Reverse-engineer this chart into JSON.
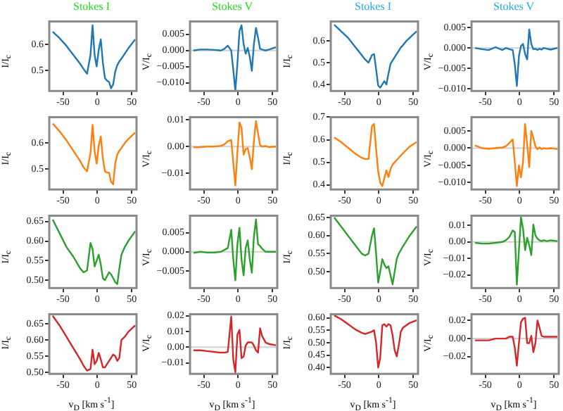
{
  "chart_data": [
    {
      "type": "line",
      "title": "Stokes I",
      "ylabel": "I/I$_{c}$",
      "x": [
        -65,
        -55,
        -45,
        -35,
        -25,
        -20,
        -15,
        -10,
        -7,
        -4,
        -1,
        2,
        5,
        8,
        11,
        14,
        17,
        20,
        23,
        26,
        29,
        32,
        35,
        40,
        45,
        55
      ],
      "xlim": [
        -70,
        57
      ],
      "xticks": [
        -50,
        0,
        50
      ],
      "ylim": [
        0.42,
        0.69
      ],
      "yticks": [
        0.5,
        0.6
      ],
      "series": [
        {
          "color": "#1f77b4",
          "values": [
            0.65,
            0.625,
            0.595,
            0.56,
            0.525,
            0.505,
            0.487,
            0.56,
            0.675,
            0.56,
            0.515,
            0.58,
            0.62,
            0.53,
            0.47,
            0.46,
            0.455,
            0.43,
            0.445,
            0.495,
            0.52,
            0.535,
            0.545,
            0.565,
            0.585,
            0.62
          ]
        }
      ]
    },
    {
      "type": "line",
      "title": "Stokes V",
      "ylabel": "V/I$_{c}$",
      "x": [
        -65,
        -55,
        -45,
        -35,
        -25,
        -20,
        -15,
        -10,
        -7,
        -4,
        -1,
        2,
        5,
        8,
        11,
        14,
        17,
        20,
        23,
        26,
        29,
        32,
        35,
        40,
        45,
        55
      ],
      "xlim": [
        -70,
        57
      ],
      "xticks": [
        -50,
        0,
        50
      ],
      "ylim": [
        -0.0125,
        0.009
      ],
      "yticks": [
        {
          "value": -0.01,
          "label": "−0.010"
        },
        {
          "value": -0.005,
          "label": "−0.005"
        },
        {
          "value": 0,
          "label": "0.000"
        },
        {
          "value": 0.005,
          "label": "0.005"
        }
      ],
      "ref_lines": [
        {
          "axis": "y",
          "value": 0,
          "color": "#d0d0d0"
        }
      ],
      "series": [
        {
          "color": "#1f77b4",
          "values": [
            0,
            0.0003,
            0.0003,
            0.0002,
            0,
            0.0005,
            0.0015,
            0,
            -0.006,
            -0.0125,
            -0.004,
            0.006,
            0.0078,
            0.002,
            -0.001,
            0.0008,
            -0.002,
            -0.0063,
            0.002,
            0.007,
            0.004,
            0.0005,
            0.0003,
            0,
            0.0003,
            0.001
          ]
        }
      ]
    },
    {
      "type": "line",
      "title": "Stokes I",
      "ylabel": "I/I$_{c}$",
      "x": [
        -65,
        -55,
        -45,
        -35,
        -25,
        -20,
        -15,
        -10,
        -7,
        -4,
        -1,
        2,
        5,
        8,
        11,
        14,
        17,
        20,
        23,
        26,
        29,
        32,
        35,
        40,
        45,
        55
      ],
      "xlim": [
        -70,
        57
      ],
      "xticks": [
        -50,
        0,
        50
      ],
      "ylim": [
        0.37,
        0.69
      ],
      "yticks": [
        0.4,
        0.5,
        0.6
      ],
      "series": [
        {
          "color": "#1f77b4",
          "values": [
            0.675,
            0.645,
            0.615,
            0.575,
            0.535,
            0.515,
            0.5,
            0.535,
            0.54,
            0.47,
            0.395,
            0.385,
            0.4,
            0.415,
            0.4,
            0.45,
            0.495,
            0.51,
            0.525,
            0.54,
            0.555,
            0.57,
            0.58,
            0.6,
            0.615,
            0.645
          ]
        }
      ]
    },
    {
      "type": "line",
      "title": "Stokes V",
      "ylabel": "V/I$_{c}$",
      "x": [
        -65,
        -55,
        -45,
        -35,
        -25,
        -20,
        -15,
        -10,
        -7,
        -4,
        -1,
        2,
        5,
        8,
        11,
        14,
        17,
        20,
        23,
        26,
        29,
        32,
        35,
        40,
        45,
        55
      ],
      "xlim": [
        -70,
        57
      ],
      "xticks": [
        -50,
        0,
        50
      ],
      "ylim": [
        -0.0105,
        0.0065
      ],
      "yticks": [
        {
          "value": -0.01,
          "label": "−0.010"
        },
        {
          "value": -0.005,
          "label": "−0.005"
        },
        {
          "value": 0,
          "label": "0.000"
        },
        {
          "value": 0.005,
          "label": "0.005"
        }
      ],
      "ref_lines": [
        {
          "axis": "y",
          "value": 0,
          "color": "#d0d0d0"
        }
      ],
      "series": [
        {
          "color": "#1f77b4",
          "values": [
            0,
            -0.0003,
            -0.0005,
            0.0002,
            -0.0005,
            0,
            -0.0003,
            -0.0005,
            -0.004,
            -0.0093,
            -0.002,
            0.0005,
            0.001,
            -0.0015,
            -0.0028,
            0.0045,
            0.001,
            -0.0003,
            -0.0002,
            -0.0005,
            -0.0002,
            -0.0004,
            0,
            -0.0002,
            -0.0004,
            0
          ]
        }
      ]
    },
    {
      "type": "line",
      "ylabel": "I/I$_{c}$",
      "x": [
        -65,
        -55,
        -45,
        -35,
        -25,
        -20,
        -15,
        -10,
        -7,
        -4,
        -1,
        2,
        5,
        8,
        11,
        14,
        17,
        20,
        23,
        26,
        29,
        32,
        35,
        40,
        45,
        55
      ],
      "xlim": [
        -70,
        57
      ],
      "xticks": [
        -50,
        0,
        50
      ],
      "ylim": [
        0.42,
        0.7
      ],
      "yticks": [
        0.5,
        0.6
      ],
      "series": [
        {
          "color": "#ff7f0e",
          "values": [
            0.675,
            0.645,
            0.61,
            0.57,
            0.53,
            0.505,
            0.49,
            0.56,
            0.67,
            0.57,
            0.52,
            0.59,
            0.625,
            0.54,
            0.49,
            0.485,
            0.485,
            0.45,
            0.44,
            0.52,
            0.555,
            0.57,
            0.58,
            0.6,
            0.615,
            0.64
          ]
        }
      ]
    },
    {
      "type": "line",
      "ylabel": "V/I$_{c}$",
      "x": [
        -65,
        -55,
        -45,
        -35,
        -25,
        -20,
        -15,
        -10,
        -7,
        -4,
        -1,
        2,
        5,
        8,
        11,
        14,
        17,
        20,
        23,
        26,
        29,
        32,
        35,
        40,
        45,
        55
      ],
      "xlim": [
        -70,
        57
      ],
      "xticks": [
        -50,
        0,
        50
      ],
      "ylim": [
        -0.016,
        0.011
      ],
      "yticks": [
        {
          "value": -0.01,
          "label": "−0.01"
        },
        {
          "value": 0,
          "label": "0.00"
        },
        {
          "value": 0.01,
          "label": "0.01"
        }
      ],
      "ref_lines": [
        {
          "axis": "y",
          "value": 0,
          "color": "#d0d0d0"
        }
      ],
      "series": [
        {
          "color": "#ff7f0e",
          "values": [
            -0.0003,
            -0.0002,
            0,
            0,
            0.0003,
            0.0008,
            0.002,
            0.0025,
            -0.006,
            -0.0145,
            -0.002,
            0.009,
            0.007,
            -0.003,
            -0.001,
            -0.0005,
            -0.004,
            -0.0085,
            0.002,
            0.0095,
            0.005,
            0.0005,
            0,
            0.0002,
            -0.0002,
            0
          ]
        }
      ]
    },
    {
      "type": "line",
      "ylabel": "I/I$_{c}$",
      "x": [
        -65,
        -55,
        -45,
        -35,
        -25,
        -20,
        -15,
        -10,
        -7,
        -4,
        -1,
        2,
        5,
        8,
        11,
        14,
        17,
        20,
        23,
        26,
        29,
        32,
        35,
        40,
        45,
        55
      ],
      "xlim": [
        -70,
        57
      ],
      "xticks": [
        -50,
        0,
        50
      ],
      "ylim": [
        0.38,
        0.7
      ],
      "yticks": [
        0.4,
        0.5,
        0.6,
        0.7
      ],
      "series": [
        {
          "color": "#ff7f0e",
          "values": [
            0.61,
            0.59,
            0.565,
            0.54,
            0.52,
            0.515,
            0.515,
            0.66,
            0.67,
            0.56,
            0.46,
            0.41,
            0.395,
            0.43,
            0.465,
            0.435,
            0.47,
            0.49,
            0.5,
            0.51,
            0.52,
            0.53,
            0.54,
            0.555,
            0.57,
            0.59
          ]
        }
      ]
    },
    {
      "type": "line",
      "ylabel": "V/I$_{c}$",
      "x": [
        -65,
        -55,
        -45,
        -35,
        -25,
        -20,
        -15,
        -10,
        -7,
        -4,
        -1,
        2,
        5,
        8,
        11,
        14,
        17,
        20,
        23,
        26,
        29,
        32,
        35,
        40,
        45,
        55
      ],
      "xlim": [
        -70,
        57
      ],
      "xticks": [
        -50,
        0,
        50
      ],
      "ylim": [
        -0.012,
        0.009
      ],
      "yticks": [
        {
          "value": -0.01,
          "label": "−0.010"
        },
        {
          "value": -0.005,
          "label": "−0.005"
        },
        {
          "value": 0,
          "label": "0.000"
        },
        {
          "value": 0.005,
          "label": "0.005"
        }
      ],
      "ref_lines": [
        {
          "axis": "y",
          "value": 0,
          "color": "#d0d0d0"
        }
      ],
      "series": [
        {
          "color": "#ff7f0e",
          "values": [
            0.0008,
            0,
            -0.0002,
            0,
            0.0002,
            0.0005,
            0.0015,
            0.0025,
            -0.004,
            -0.011,
            -0.005,
            -0.0085,
            -0.004,
            0.007,
            0.001,
            -0.0055,
            0.005,
            0.003,
            0.0005,
            -0.0003,
            0.0002,
            -0.0003,
            0,
            -0.0002,
            0,
            -0.0003
          ]
        }
      ]
    },
    {
      "type": "line",
      "ylabel": "I/I$_{c}$",
      "x": [
        -65,
        -55,
        -45,
        -35,
        -25,
        -20,
        -15,
        -10,
        -7,
        -4,
        -1,
        2,
        5,
        8,
        11,
        14,
        17,
        20,
        23,
        26,
        29,
        32,
        35,
        40,
        45,
        55
      ],
      "xlim": [
        -70,
        57
      ],
      "xticks": [
        -50,
        0,
        50
      ],
      "ylim": [
        0.48,
        0.665
      ],
      "yticks": [
        {
          "value": 0.5,
          "label": "0.50"
        },
        {
          "value": 0.55,
          "label": "0.55"
        },
        {
          "value": 0.6,
          "label": "0.60"
        },
        {
          "value": 0.65,
          "label": "0.65"
        }
      ],
      "series": [
        {
          "color": "#2ca02c",
          "values": [
            0.655,
            0.62,
            0.585,
            0.56,
            0.53,
            0.52,
            0.525,
            0.595,
            0.58,
            0.535,
            0.55,
            0.565,
            0.54,
            0.505,
            0.5,
            0.51,
            0.52,
            0.515,
            0.505,
            0.495,
            0.49,
            0.53,
            0.565,
            0.585,
            0.6,
            0.625
          ]
        }
      ]
    },
    {
      "type": "line",
      "ylabel": "V/I$_{c}$",
      "x": [
        -65,
        -55,
        -45,
        -35,
        -25,
        -20,
        -15,
        -10,
        -7,
        -4,
        -1,
        2,
        5,
        8,
        11,
        14,
        17,
        20,
        23,
        26,
        29,
        32,
        35,
        40,
        45,
        55
      ],
      "xlim": [
        -70,
        57
      ],
      "xticks": [
        -50,
        0,
        50
      ],
      "ylim": [
        -0.0095,
        0.0095
      ],
      "yticks": [
        {
          "value": -0.005,
          "label": "−0.005"
        },
        {
          "value": 0,
          "label": "0.000"
        },
        {
          "value": 0.005,
          "label": "0.005"
        }
      ],
      "ref_lines": [
        {
          "axis": "y",
          "value": 0,
          "color": "#d0d0d0"
        }
      ],
      "series": [
        {
          "color": "#2ca02c",
          "values": [
            -0.0003,
            0,
            -0.0002,
            -0.0002,
            0,
            0.0005,
            0.001,
            0.0058,
            -0.002,
            -0.0075,
            0.002,
            0.0063,
            -0.002,
            -0.0062,
            0.001,
            0.003,
            -0.002,
            -0.0055,
            0.004,
            0.0085,
            0.002,
            0.0015,
            0.0008,
            0,
            0,
            0
          ]
        }
      ]
    },
    {
      "type": "line",
      "ylabel": "I/I$_{c}$",
      "x": [
        -65,
        -55,
        -45,
        -35,
        -25,
        -20,
        -15,
        -10,
        -7,
        -4,
        -1,
        2,
        5,
        8,
        11,
        14,
        17,
        20,
        23,
        26,
        29,
        32,
        35,
        40,
        45,
        55
      ],
      "xlim": [
        -70,
        57
      ],
      "xticks": [
        -50,
        0,
        50
      ],
      "ylim": [
        0.455,
        0.655
      ],
      "yticks": [
        {
          "value": 0.5,
          "label": "0.50"
        },
        {
          "value": 0.55,
          "label": "0.55"
        },
        {
          "value": 0.6,
          "label": "0.60"
        },
        {
          "value": 0.65,
          "label": "0.65"
        }
      ],
      "series": [
        {
          "color": "#2ca02c",
          "values": [
            0.65,
            0.625,
            0.6,
            0.575,
            0.55,
            0.545,
            0.55,
            0.6,
            0.62,
            0.55,
            0.47,
            0.5,
            0.535,
            0.52,
            0.51,
            0.515,
            0.49,
            0.465,
            0.5,
            0.535,
            0.55,
            0.56,
            0.57,
            0.585,
            0.6,
            0.625
          ]
        }
      ]
    },
    {
      "type": "line",
      "ylabel": "V/I$_{c}$",
      "x": [
        -65,
        -55,
        -45,
        -35,
        -25,
        -20,
        -15,
        -10,
        -7,
        -4,
        -1,
        2,
        5,
        8,
        11,
        14,
        17,
        20,
        23,
        26,
        29,
        32,
        35,
        40,
        45,
        55
      ],
      "xlim": [
        -70,
        57
      ],
      "xticks": [
        -50,
        0,
        50
      ],
      "ylim": [
        -0.028,
        0.016
      ],
      "yticks": [
        {
          "value": -0.02,
          "label": "−0.02"
        },
        {
          "value": -0.01,
          "label": "−0.01"
        },
        {
          "value": 0,
          "label": "0.00"
        },
        {
          "value": 0.01,
          "label": "0.01"
        }
      ],
      "ref_lines": [
        {
          "axis": "y",
          "value": 0,
          "color": "#d0d0d0"
        }
      ],
      "series": [
        {
          "color": "#2ca02c",
          "values": [
            -0.0005,
            -0.001,
            -0.001,
            -0.0005,
            0,
            0.001,
            0.003,
            0.007,
            0.006,
            -0.026,
            -0.005,
            0.015,
            0.008,
            -0.005,
            0.0025,
            -0.002,
            -0.008,
            0.0105,
            0.004,
            0.002,
            0.001,
            0.0005,
            0.001,
            0.0005,
            0.001,
            0.0005
          ]
        }
      ]
    },
    {
      "type": "line",
      "xlabel": "v$_{D}$ [km s$^{-1}$]",
      "ylabel": "I/I$_{c}$",
      "x": [
        -65,
        -55,
        -45,
        -35,
        -25,
        -20,
        -15,
        -10,
        -7,
        -4,
        -1,
        2,
        5,
        8,
        11,
        14,
        17,
        20,
        23,
        26,
        29,
        32,
        35,
        40,
        45,
        55
      ],
      "xlim": [
        -70,
        57
      ],
      "xticks": [
        -50,
        0,
        50
      ],
      "ylim": [
        0.495,
        0.68
      ],
      "yticks": [
        {
          "value": 0.5,
          "label": "0.50"
        },
        {
          "value": 0.55,
          "label": "0.55"
        },
        {
          "value": 0.6,
          "label": "0.60"
        },
        {
          "value": 0.65,
          "label": "0.65"
        }
      ],
      "series": [
        {
          "color": "#d62728",
          "values": [
            0.675,
            0.645,
            0.61,
            0.575,
            0.54,
            0.52,
            0.505,
            0.51,
            0.57,
            0.525,
            0.535,
            0.56,
            0.54,
            0.515,
            0.515,
            0.525,
            0.535,
            0.545,
            0.555,
            0.55,
            0.535,
            0.545,
            0.6,
            0.61,
            0.625,
            0.645
          ]
        }
      ]
    },
    {
      "type": "line",
      "xlabel": "v$_{D}$ [km s$^{-1}$]",
      "ylabel": "V/I$_{c}$",
      "x": [
        -65,
        -55,
        -45,
        -35,
        -25,
        -20,
        -15,
        -10,
        -7,
        -4,
        -1,
        2,
        5,
        8,
        11,
        14,
        17,
        20,
        23,
        26,
        29,
        32,
        35,
        40,
        45,
        55
      ],
      "xlim": [
        -70,
        57
      ],
      "xticks": [
        -50,
        0,
        50
      ],
      "ylim": [
        -0.017,
        0.021
      ],
      "yticks": [
        {
          "value": -0.01,
          "label": "−0.01"
        },
        {
          "value": 0,
          "label": "0.00"
        },
        {
          "value": 0.01,
          "label": "0.01"
        },
        {
          "value": 0.02,
          "label": "0.02"
        }
      ],
      "ref_lines": [
        {
          "axis": "y",
          "value": 0,
          "color": "#d0d0d0"
        }
      ],
      "series": [
        {
          "color": "#d62728",
          "values": [
            -0.002,
            -0.002,
            -0.0025,
            -0.003,
            -0.0035,
            -0.0035,
            -0.003,
            0.0195,
            -0.008,
            -0.016,
            0.008,
            0.011,
            -0.007,
            -0.006,
            0.001,
            0.003,
            0.003,
            0.003,
            0.001,
            -0.002,
            -0.0035,
            0.012,
            0.007,
            0.003,
            0.002,
            0.0012
          ]
        }
      ]
    },
    {
      "type": "line",
      "xlabel": "v$_{D}$ [km s$^{-1}$]",
      "ylabel": "I/I$_{c}$",
      "x": [
        -65,
        -55,
        -45,
        -35,
        -25,
        -20,
        -15,
        -10,
        -7,
        -4,
        -1,
        2,
        5,
        8,
        11,
        14,
        17,
        20,
        23,
        26,
        29,
        32,
        35,
        40,
        45,
        55
      ],
      "xlim": [
        -70,
        57
      ],
      "xticks": [
        -50,
        0,
        50
      ],
      "ylim": [
        0.375,
        0.615
      ],
      "yticks": [
        {
          "value": 0.4,
          "label": "0.40"
        },
        {
          "value": 0.45,
          "label": "0.45"
        },
        {
          "value": 0.5,
          "label": "0.50"
        },
        {
          "value": 0.55,
          "label": "0.55"
        },
        {
          "value": 0.6,
          "label": "0.60"
        }
      ],
      "series": [
        {
          "color": "#d62728",
          "values": [
            0.61,
            0.595,
            0.575,
            0.555,
            0.54,
            0.535,
            0.54,
            0.545,
            0.55,
            0.5,
            0.4,
            0.44,
            0.57,
            0.575,
            0.565,
            0.575,
            0.57,
            0.53,
            0.47,
            0.445,
            0.49,
            0.545,
            0.56,
            0.57,
            0.58,
            0.59
          ]
        }
      ]
    },
    {
      "type": "line",
      "xlabel": "v$_{D}$ [km s$^{-1}$]",
      "ylabel": "V/I$_{c}$",
      "x": [
        -65,
        -55,
        -45,
        -35,
        -25,
        -20,
        -15,
        -10,
        -7,
        -4,
        -1,
        2,
        5,
        8,
        11,
        14,
        17,
        20,
        23,
        26,
        29,
        32,
        35,
        40,
        45,
        55
      ],
      "xlim": [
        -70,
        57
      ],
      "xticks": [
        -50,
        0,
        50
      ],
      "ylim": [
        -0.039,
        0.027
      ],
      "yticks": [
        {
          "value": -0.02,
          "label": "−0.02"
        },
        {
          "value": 0,
          "label": "0.00"
        },
        {
          "value": 0.02,
          "label": "0.02"
        }
      ],
      "ref_lines": [
        {
          "axis": "y",
          "value": 0,
          "color": "#d0d0d0"
        }
      ],
      "series": [
        {
          "color": "#d62728",
          "values": [
            -0.002,
            -0.002,
            -0.002,
            0,
            0,
            0,
            0.002,
            0.002,
            -0.01,
            -0.03,
            -0.005,
            0.018,
            0.022,
            0.023,
            -0.005,
            -0.005,
            0.003,
            -0.015,
            -0.005,
            0.02,
            0.012,
            0.003,
            0.002,
            0.002,
            0.002,
            0.002
          ]
        }
      ]
    }
  ]
}
